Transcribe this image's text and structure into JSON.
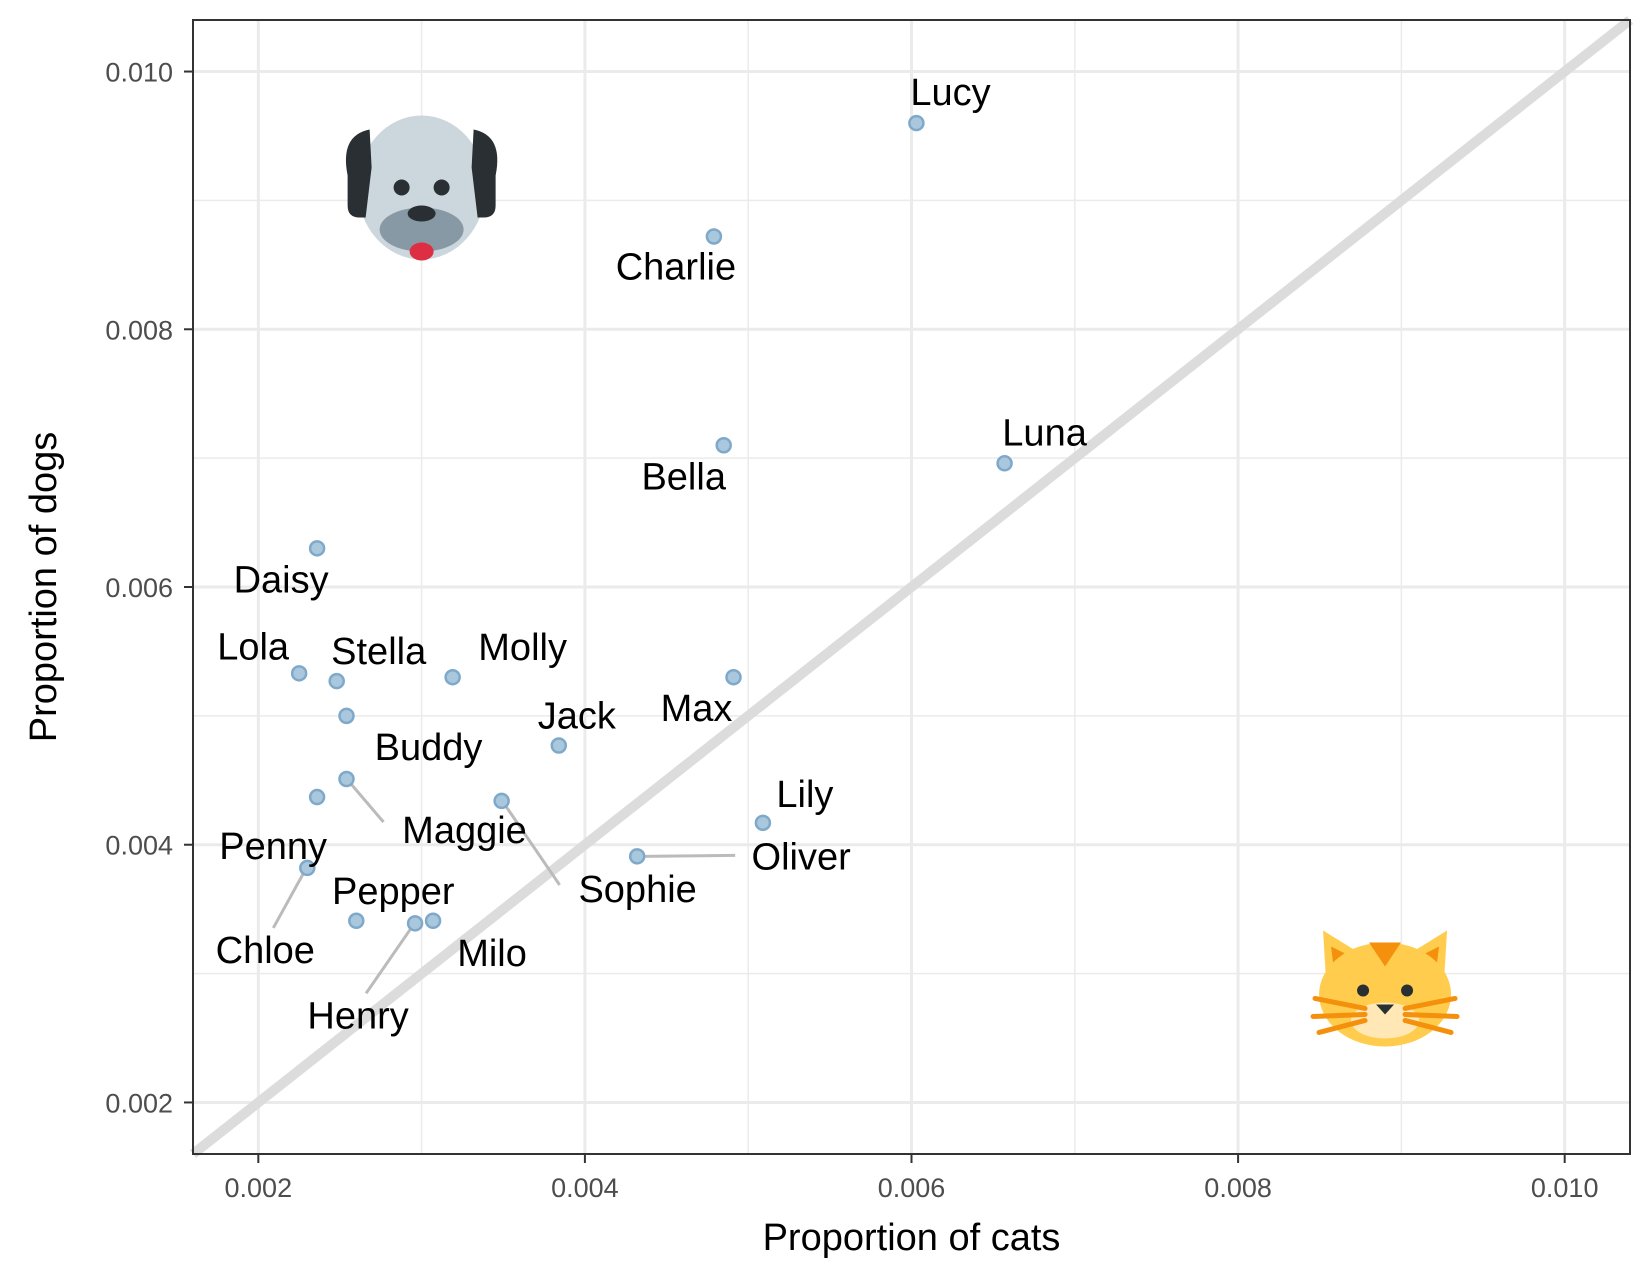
{
  "chart_data": {
    "type": "scatter",
    "xlabel": "Proportion of cats",
    "ylabel": "Proportion of dogs",
    "xlim": [
      0.0016,
      0.0104
    ],
    "ylim": [
      0.0016,
      0.0104
    ],
    "x_ticks": [
      "0.002",
      "0.004",
      "0.006",
      "0.008",
      "0.010"
    ],
    "y_ticks": [
      "0.002",
      "0.004",
      "0.006",
      "0.008",
      "0.010"
    ],
    "grid": true,
    "reference_line": "y = x",
    "icons": [
      "dog-face",
      "cat-face"
    ],
    "colors": {
      "point_fill": "#a9c8dd",
      "point_stroke": "#7fa8c9",
      "reference_line": "#dcdcdc",
      "grid": "#ebebeb",
      "leader": "#bbbbbb"
    },
    "points": [
      {
        "name": "Lucy",
        "x": 0.00603,
        "y": 0.0096
      },
      {
        "name": "Charlie",
        "x": 0.00479,
        "y": 0.00872
      },
      {
        "name": "Bella",
        "x": 0.00485,
        "y": 0.0071
      },
      {
        "name": "Luna",
        "x": 0.00657,
        "y": 0.00696
      },
      {
        "name": "Daisy",
        "x": 0.00236,
        "y": 0.0063
      },
      {
        "name": "Lola",
        "x": 0.00225,
        "y": 0.00533
      },
      {
        "name": "Stella",
        "x": 0.00248,
        "y": 0.00527
      },
      {
        "name": "Molly",
        "x": 0.00319,
        "y": 0.0053
      },
      {
        "name": "Max",
        "x": 0.00491,
        "y": 0.0053
      },
      {
        "name": "Buddy",
        "x": 0.00254,
        "y": 0.005
      },
      {
        "name": "Jack",
        "x": 0.00384,
        "y": 0.00477
      },
      {
        "name": "Maggie",
        "x": 0.00254,
        "y": 0.00451
      },
      {
        "name": "Penny",
        "x": 0.00236,
        "y": 0.00437
      },
      {
        "name": "Sophie",
        "x": 0.00349,
        "y": 0.00434
      },
      {
        "name": "Lily",
        "x": 0.00509,
        "y": 0.00417
      },
      {
        "name": "Oliver",
        "x": 0.00432,
        "y": 0.00391
      },
      {
        "name": "Chloe",
        "x": 0.0023,
        "y": 0.00382
      },
      {
        "name": "Pepper",
        "x": 0.0026,
        "y": 0.00341
      },
      {
        "name": "Henry",
        "x": 0.00296,
        "y": 0.00339
      },
      {
        "name": "Milo",
        "x": 0.00307,
        "y": 0.00341
      }
    ]
  }
}
